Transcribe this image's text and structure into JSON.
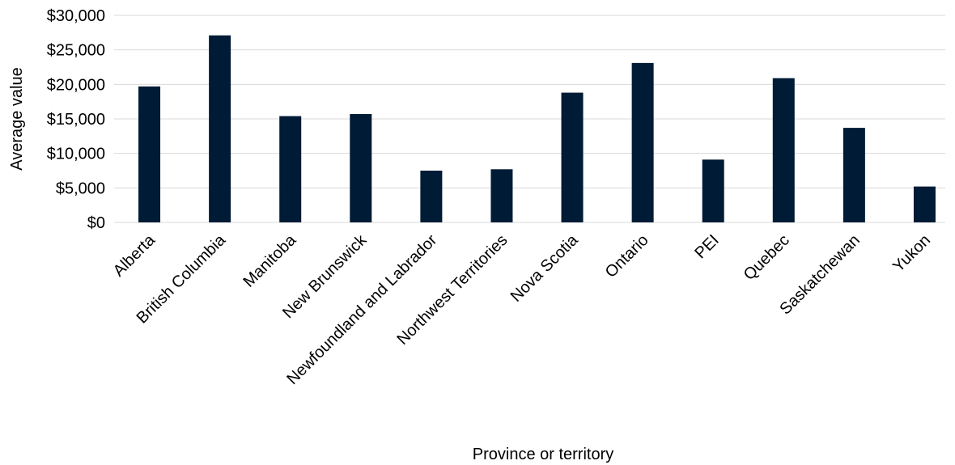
{
  "chart_data": {
    "type": "bar",
    "title": "",
    "xlabel": "Province or territory",
    "ylabel": "Average value",
    "categories": [
      "Alberta",
      "British Columbia",
      "Manitoba",
      "New Brunswick",
      "Newfoundland and Labrador",
      "Northwest Territories",
      "Nova Scotia",
      "Ontario",
      "PEI",
      "Quebec",
      "Saskatchewan",
      "Yukon"
    ],
    "values": [
      19700,
      27100,
      15400,
      15700,
      7500,
      7700,
      18800,
      23100,
      9100,
      20900,
      13700,
      5200
    ],
    "ylim": [
      0,
      30000
    ],
    "yticks": [
      0,
      5000,
      10000,
      15000,
      20000,
      25000,
      30000
    ],
    "ytick_labels": [
      "$0",
      "$5,000",
      "$10,000",
      "$15,000",
      "$20,000",
      "$25,000",
      "$30,000"
    ],
    "grid": true,
    "legend": "none",
    "colors": {
      "bar": "#001b35",
      "grid": "#d9d9d9"
    }
  }
}
